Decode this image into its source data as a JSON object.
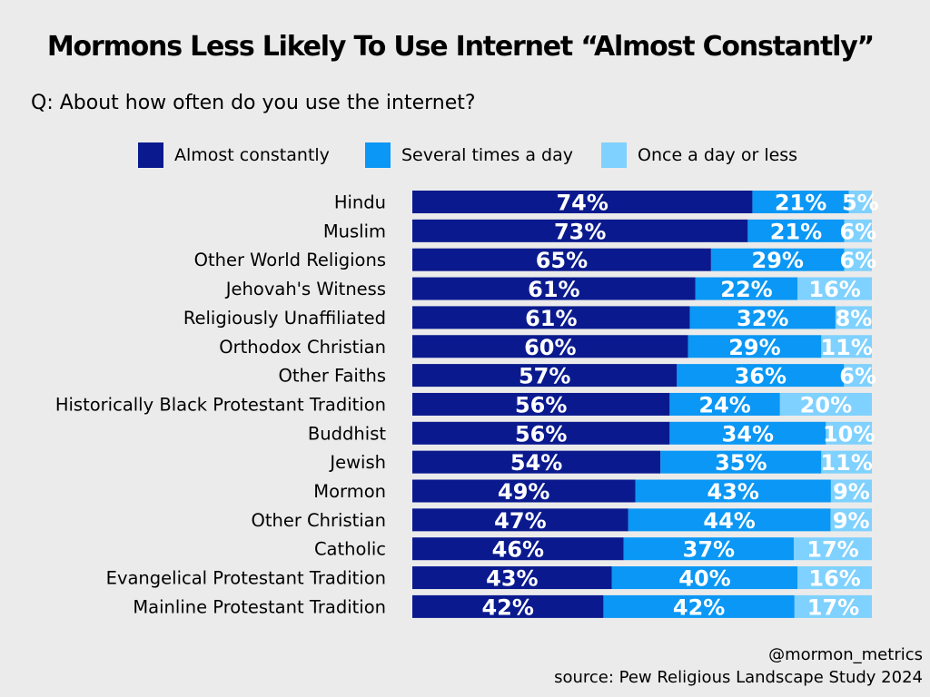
{
  "chart_data": {
    "type": "bar",
    "orientation": "horizontal",
    "stacked": true,
    "title": "Mormons Less Likely To Use Internet “Almost Constantly”",
    "subtitle": "Q: About how often do you use the internet?",
    "categories": [
      "Hindu",
      "Muslim",
      "Other World Religions",
      "Jehovah's Witness",
      "Religiously Unaffiliated",
      "Orthodox Christian",
      "Other Faiths",
      "Historically Black Protestant Tradition",
      "Buddhist",
      "Jewish",
      "Mormon",
      "Other Christian",
      "Catholic",
      "Evangelical Protestant Tradition",
      "Mainline Protestant Tradition"
    ],
    "series": [
      {
        "name": "Almost constantly",
        "color": "#0a1a8e",
        "values": [
          74,
          73,
          65,
          61,
          61,
          60,
          57,
          56,
          56,
          54,
          49,
          47,
          46,
          43,
          42
        ]
      },
      {
        "name": "Several times a day",
        "color": "#0a97f5",
        "values": [
          21,
          21,
          29,
          22,
          32,
          29,
          36,
          24,
          34,
          35,
          43,
          44,
          37,
          40,
          42
        ]
      },
      {
        "name": "Once a day or less",
        "color": "#7fd1ff",
        "values": [
          5,
          6,
          6,
          16,
          8,
          11,
          6,
          20,
          10,
          11,
          9,
          9,
          17,
          16,
          17
        ]
      }
    ],
    "value_suffix": "%",
    "xlim": [
      0,
      100
    ],
    "legend_position": "top",
    "grid": false
  },
  "footer": {
    "handle": "@mormon_metrics",
    "source": "source: Pew Religious Landscape Study 2024"
  }
}
